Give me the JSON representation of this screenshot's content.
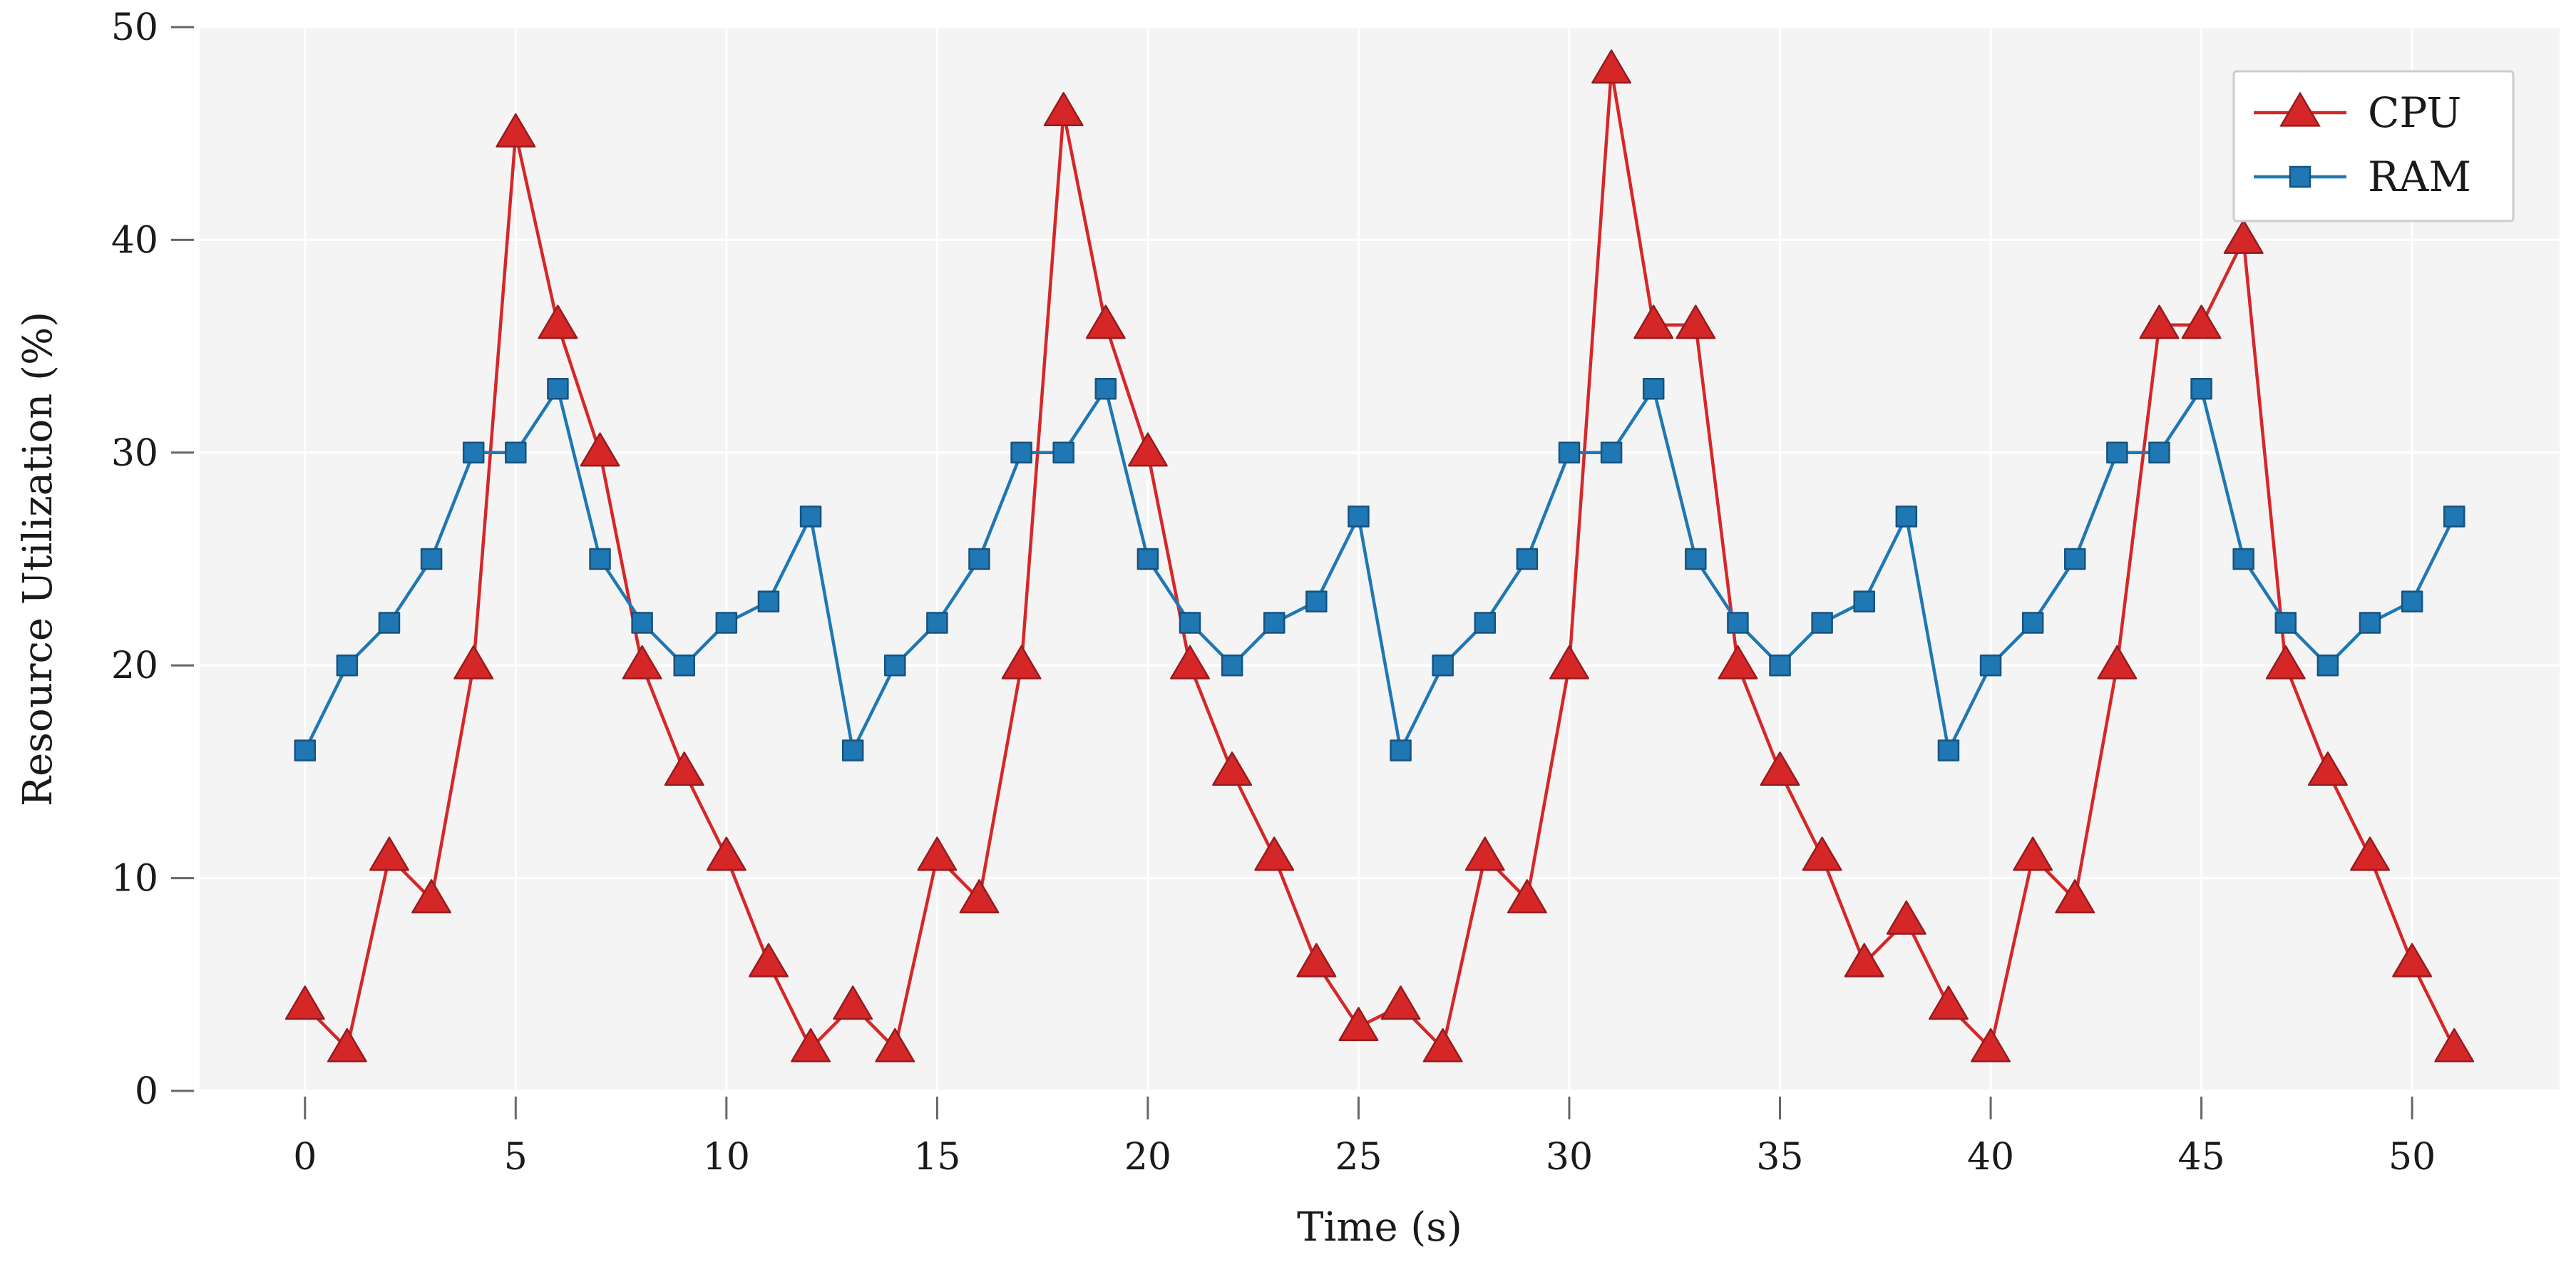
{
  "chart_data": {
    "type": "line",
    "title": "",
    "xlabel": "Time (s)",
    "ylabel": "Resource Utilization (%)",
    "xlim": [
      -2.5,
      53.5
    ],
    "ylim": [
      0,
      50
    ],
    "xticks": [
      0,
      5,
      10,
      15,
      20,
      25,
      30,
      35,
      40,
      45,
      50
    ],
    "yticks": [
      0,
      10,
      20,
      30,
      40,
      50
    ],
    "grid": true,
    "legend_position": "top-right",
    "x": [
      0,
      1,
      2,
      3,
      4,
      5,
      6,
      7,
      8,
      9,
      10,
      11,
      12,
      13,
      14,
      15,
      16,
      17,
      18,
      19,
      20,
      21,
      22,
      23,
      24,
      25,
      26,
      27,
      28,
      29,
      30,
      31,
      32,
      33,
      34,
      35,
      36,
      37,
      38,
      39,
      40,
      41,
      42,
      43,
      44,
      45,
      46,
      47,
      48,
      49,
      50,
      51
    ],
    "series": [
      {
        "name": "CPU",
        "color": "#d62728",
        "marker": "triangle",
        "values": [
          4,
          2,
          11,
          9,
          20,
          45,
          36,
          30,
          20,
          15,
          11,
          6,
          2,
          4,
          2,
          11,
          9,
          20,
          46,
          36,
          30,
          20,
          15,
          11,
          6,
          3,
          4,
          2,
          11,
          9,
          20,
          48,
          36,
          36,
          20,
          15,
          11,
          6,
          8,
          4,
          2,
          11,
          9,
          20,
          36,
          36,
          40,
          20,
          15,
          11,
          6,
          2
        ]
      },
      {
        "name": "RAM",
        "color": "#1f77b4",
        "marker": "square",
        "values": [
          16,
          20,
          22,
          25,
          30,
          30,
          33,
          25,
          22,
          20,
          22,
          23,
          27,
          16,
          20,
          22,
          25,
          30,
          30,
          33,
          25,
          22,
          20,
          22,
          23,
          27,
          16,
          20,
          22,
          25,
          30,
          30,
          33,
          25,
          22,
          20,
          22,
          23,
          27,
          16,
          20,
          22,
          25,
          30,
          30,
          33,
          25,
          22,
          20,
          22,
          23,
          27
        ]
      }
    ]
  },
  "colors": {
    "plot_background": "#f4f4f4",
    "grid": "#ffffff",
    "axis": "#666666"
  }
}
